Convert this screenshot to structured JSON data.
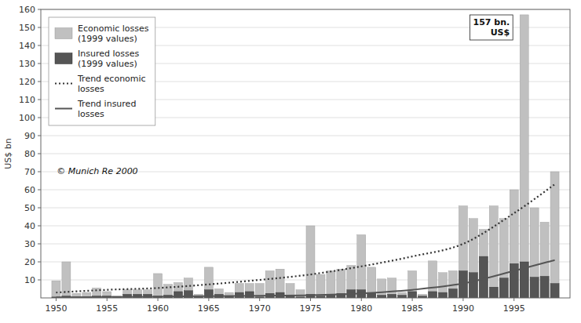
{
  "chart_data": {
    "type": "bar",
    "x": [
      1950,
      1951,
      1952,
      1953,
      1954,
      1955,
      1956,
      1957,
      1958,
      1959,
      1960,
      1961,
      1962,
      1963,
      1964,
      1965,
      1966,
      1967,
      1968,
      1969,
      1970,
      1971,
      1972,
      1973,
      1974,
      1975,
      1976,
      1977,
      1978,
      1979,
      1980,
      1981,
      1982,
      1983,
      1984,
      1985,
      1986,
      1987,
      1988,
      1989,
      1990,
      1991,
      1992,
      1993,
      1994,
      1995,
      1996,
      1997,
      1998,
      1999
    ],
    "series": [
      {
        "name": "Economic losses\n(1999 values)",
        "type": "bar",
        "color": "#c0c0c0",
        "values": [
          9.5,
          20.0,
          2.5,
          3.0,
          5.5,
          3.5,
          1.0,
          4.5,
          4.5,
          4.5,
          13.5,
          7.5,
          8.5,
          11.0,
          2.0,
          17.0,
          5.0,
          3.0,
          8.0,
          8.0,
          8.0,
          15.0,
          16.0,
          8.0,
          4.5,
          40.0,
          13.0,
          15.0,
          16.0,
          18.0,
          35.0,
          17.0,
          10.5,
          11.0,
          3.0,
          15.0,
          2.0,
          20.5,
          14.0,
          15.0,
          51.0,
          44.0,
          38.0,
          51.0,
          44.0,
          60.0,
          157.0,
          50.0,
          42.0,
          70.0
        ]
      },
      {
        "name": "Insured losses\n(1999 values)",
        "type": "bar",
        "color": "#555555",
        "values": [
          0.5,
          1.0,
          0.5,
          0.5,
          1.0,
          1.0,
          0.5,
          2.0,
          2.0,
          2.0,
          1.0,
          1.5,
          3.5,
          4.0,
          0.5,
          4.5,
          2.0,
          1.0,
          3.0,
          3.5,
          0.5,
          2.5,
          3.0,
          1.0,
          0.5,
          2.0,
          1.0,
          2.0,
          2.5,
          4.5,
          4.5,
          2.5,
          1.5,
          2.0,
          1.5,
          3.5,
          1.0,
          3.5,
          3.0,
          5.0,
          15.0,
          14.0,
          23.0,
          6.0,
          11.0,
          19.0,
          20.0,
          11.5,
          12.0,
          8.0
        ]
      },
      {
        "name": "Trend economic\nlosses",
        "type": "line",
        "color": "#333333",
        "line_style": "dotted",
        "x": [
          1950,
          1955,
          1960,
          1965,
          1970,
          1975,
          1980,
          1985,
          1990,
          1995,
          1999
        ],
        "values": [
          3.0,
          4.5,
          5.5,
          7.5,
          10.0,
          13.0,
          17.5,
          23.0,
          30.0,
          47.0,
          63.0
        ]
      },
      {
        "name": "Trend insured\nlosses",
        "type": "line",
        "color": "#555555",
        "line_style": "solid",
        "x": [
          1950,
          1955,
          1960,
          1965,
          1970,
          1975,
          1980,
          1985,
          1990,
          1995,
          1999
        ],
        "values": [
          0.3,
          0.5,
          0.7,
          1.0,
          1.2,
          1.5,
          2.5,
          4.5,
          8.0,
          15.0,
          21.0
        ]
      }
    ],
    "ylabel": "US$ bn",
    "xlim": [
      1948.5,
      2000.5
    ],
    "xticks": [
      1950,
      1955,
      1960,
      1965,
      1970,
      1975,
      1980,
      1985,
      1990,
      1995
    ],
    "ylim": [
      0,
      160
    ],
    "yticks": [
      10,
      20,
      30,
      40,
      50,
      60,
      70,
      80,
      90,
      100,
      110,
      120,
      130,
      140,
      150,
      160
    ],
    "grid": "y",
    "legend": "upper left",
    "annotations": [
      {
        "text": "157 bn.\nUS$",
        "x": 1996
      },
      {
        "text": "© Munich Re 2000"
      }
    ]
  }
}
